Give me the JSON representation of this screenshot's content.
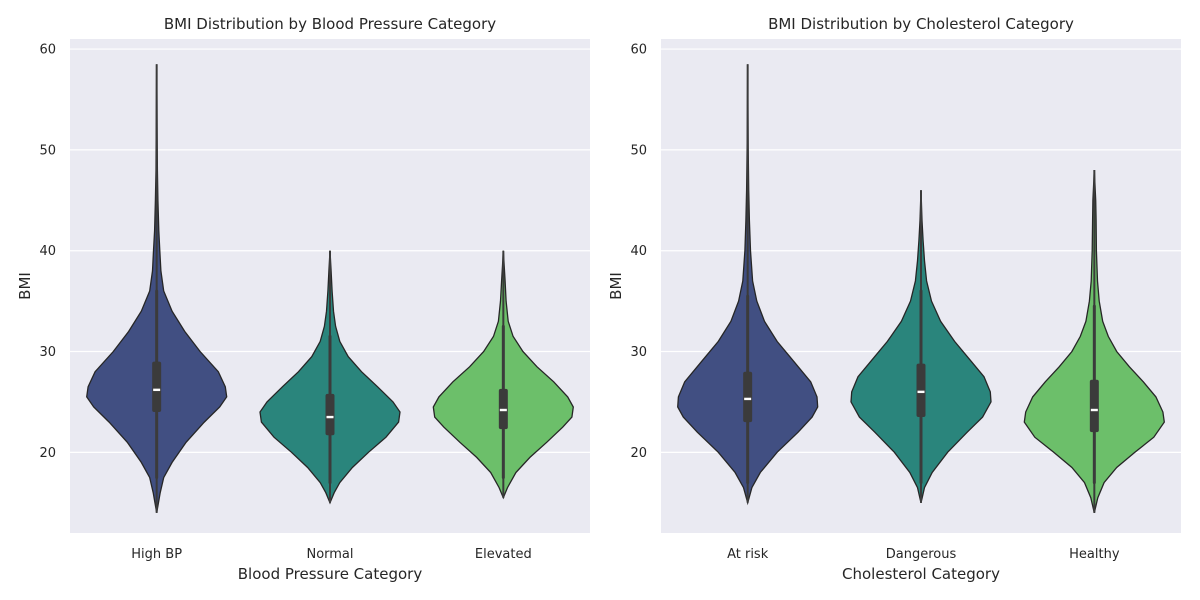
{
  "chart_data": [
    {
      "type": "violin",
      "title": "BMI Distribution by Blood Pressure Category",
      "xlabel": "Blood Pressure Category",
      "ylabel": "BMI",
      "ylim": [
        12,
        61
      ],
      "yticks": [
        20,
        30,
        40,
        50,
        60
      ],
      "grid": true,
      "categories": [
        "High BP",
        "Normal",
        "Elevated"
      ],
      "colors": [
        "#414f82",
        "#2a857c",
        "#6cbf6a"
      ],
      "violins": [
        {
          "category": "High BP",
          "min": 14,
          "max": 58.5,
          "q1": 24,
          "median": 26.2,
          "q3": 29,
          "whisker_low": 17.5,
          "whisker_high": 36,
          "density": [
            [
              14,
              0.0
            ],
            [
              16,
              0.05
            ],
            [
              17.5,
              0.1
            ],
            [
              19,
              0.22
            ],
            [
              21,
              0.42
            ],
            [
              23,
              0.68
            ],
            [
              24.5,
              0.9
            ],
            [
              25.5,
              1.0
            ],
            [
              26.5,
              0.98
            ],
            [
              28,
              0.88
            ],
            [
              30,
              0.62
            ],
            [
              32,
              0.4
            ],
            [
              34,
              0.22
            ],
            [
              36,
              0.1
            ],
            [
              38,
              0.06
            ],
            [
              40,
              0.045
            ],
            [
              42,
              0.03
            ],
            [
              45,
              0.018
            ],
            [
              48,
              0.01
            ],
            [
              52,
              0.006
            ],
            [
              58.5,
              0.0
            ]
          ]
        },
        {
          "category": "Normal",
          "min": 15,
          "max": 40,
          "q1": 21.7,
          "median": 23.5,
          "q3": 25.8,
          "whisker_low": 17,
          "whisker_high": 31.5,
          "density": [
            [
              15,
              0.0
            ],
            [
              16,
              0.06
            ],
            [
              17,
              0.14
            ],
            [
              18.5,
              0.32
            ],
            [
              20,
              0.55
            ],
            [
              21.5,
              0.8
            ],
            [
              23,
              0.98
            ],
            [
              24,
              1.0
            ],
            [
              25,
              0.9
            ],
            [
              26.5,
              0.68
            ],
            [
              28,
              0.45
            ],
            [
              29.5,
              0.26
            ],
            [
              31,
              0.14
            ],
            [
              32.5,
              0.08
            ],
            [
              34,
              0.05
            ],
            [
              36,
              0.03
            ],
            [
              38,
              0.015
            ],
            [
              40,
              0.0
            ]
          ]
        },
        {
          "category": "Elevated",
          "min": 15.5,
          "max": 40,
          "q1": 22.3,
          "median": 24.2,
          "q3": 26.3,
          "whisker_low": 17.5,
          "whisker_high": 32.5,
          "density": [
            [
              15.5,
              0.0
            ],
            [
              16.5,
              0.06
            ],
            [
              18,
              0.18
            ],
            [
              19.5,
              0.38
            ],
            [
              21,
              0.62
            ],
            [
              22.5,
              0.85
            ],
            [
              23.5,
              0.98
            ],
            [
              24.5,
              1.0
            ],
            [
              25.5,
              0.92
            ],
            [
              27,
              0.72
            ],
            [
              28.5,
              0.48
            ],
            [
              30,
              0.28
            ],
            [
              31.5,
              0.14
            ],
            [
              33,
              0.07
            ],
            [
              35,
              0.04
            ],
            [
              37,
              0.025
            ],
            [
              38.5,
              0.012
            ],
            [
              40,
              0.0
            ]
          ]
        }
      ]
    },
    {
      "type": "violin",
      "title": "BMI Distribution by Cholesterol Category",
      "xlabel": "Cholesterol Category",
      "ylabel": "BMI",
      "ylim": [
        12,
        61
      ],
      "yticks": [
        20,
        30,
        40,
        50,
        60
      ],
      "grid": true,
      "categories": [
        "At risk",
        "Dangerous",
        "Healthy"
      ],
      "colors": [
        "#414f82",
        "#2a857c",
        "#6cbf6a"
      ],
      "violins": [
        {
          "category": "At risk",
          "min": 15,
          "max": 58.5,
          "q1": 23,
          "median": 25.3,
          "q3": 28,
          "whisker_low": 17,
          "whisker_high": 35.5,
          "density": [
            [
              15,
              0.0
            ],
            [
              16.5,
              0.06
            ],
            [
              18,
              0.18
            ],
            [
              20,
              0.42
            ],
            [
              22,
              0.72
            ],
            [
              23.5,
              0.92
            ],
            [
              24.5,
              1.0
            ],
            [
              25.5,
              0.99
            ],
            [
              27,
              0.9
            ],
            [
              29,
              0.66
            ],
            [
              31,
              0.42
            ],
            [
              33,
              0.24
            ],
            [
              35,
              0.13
            ],
            [
              37,
              0.07
            ],
            [
              40,
              0.04
            ],
            [
              43,
              0.025
            ],
            [
              46,
              0.015
            ],
            [
              50,
              0.008
            ],
            [
              54,
              0.004
            ],
            [
              58.5,
              0.0
            ]
          ]
        },
        {
          "category": "Dangerous",
          "min": 15,
          "max": 46,
          "q1": 23.5,
          "median": 26,
          "q3": 28.8,
          "whisker_low": 17,
          "whisker_high": 36,
          "density": [
            [
              15,
              0.0
            ],
            [
              16.5,
              0.05
            ],
            [
              18,
              0.16
            ],
            [
              20,
              0.38
            ],
            [
              22,
              0.66
            ],
            [
              23.5,
              0.88
            ],
            [
              25,
              1.0
            ],
            [
              26,
              0.99
            ],
            [
              27.5,
              0.9
            ],
            [
              29,
              0.72
            ],
            [
              31,
              0.48
            ],
            [
              33,
              0.28
            ],
            [
              35,
              0.15
            ],
            [
              37,
              0.08
            ],
            [
              39,
              0.05
            ],
            [
              41,
              0.03
            ],
            [
              43,
              0.015
            ],
            [
              46,
              0.0
            ]
          ]
        },
        {
          "category": "Healthy",
          "min": 14,
          "max": 48,
          "q1": 22,
          "median": 24.2,
          "q3": 27.2,
          "whisker_low": 17,
          "whisker_high": 34.5,
          "density": [
            [
              14,
              0.0
            ],
            [
              15.5,
              0.05
            ],
            [
              17,
              0.14
            ],
            [
              18.5,
              0.32
            ],
            [
              20,
              0.58
            ],
            [
              21.5,
              0.85
            ],
            [
              23,
              1.0
            ],
            [
              24,
              0.98
            ],
            [
              25.5,
              0.88
            ],
            [
              27,
              0.7
            ],
            [
              28.5,
              0.5
            ],
            [
              30,
              0.32
            ],
            [
              31.5,
              0.2
            ],
            [
              33,
              0.12
            ],
            [
              35,
              0.07
            ],
            [
              37,
              0.045
            ],
            [
              40,
              0.03
            ],
            [
              43,
              0.025
            ],
            [
              45,
              0.02
            ],
            [
              46.5,
              0.01
            ],
            [
              48,
              0.0
            ]
          ]
        }
      ]
    }
  ]
}
